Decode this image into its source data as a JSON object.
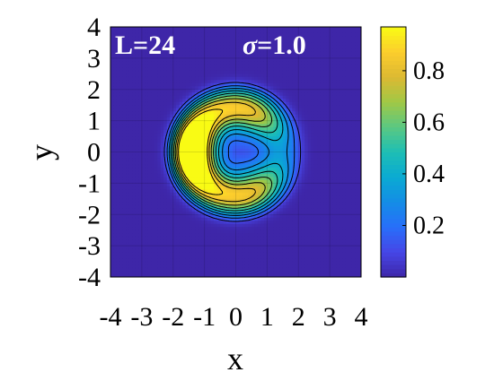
{
  "chart_data": {
    "type": "heatmap",
    "title": "",
    "xlabel": "x",
    "ylabel": "y",
    "xlim": [
      -4,
      4
    ],
    "ylim": [
      -4,
      4
    ],
    "xticks": [
      "-4",
      "-3",
      "-2",
      "-1",
      "0",
      "1",
      "2",
      "3",
      "4"
    ],
    "yticks": [
      "-4",
      "-3",
      "-2",
      "-1",
      "0",
      "1",
      "2",
      "3",
      "4"
    ],
    "annotations": {
      "left": "L=24",
      "sigma_symbol": "σ",
      "sigma_value": "=1.0"
    },
    "colorbar": {
      "range": [
        0,
        0.97
      ],
      "ticks": [
        "0.2",
        "0.4",
        "0.6",
        "0.8"
      ],
      "tick_values": [
        0.2,
        0.4,
        0.6,
        0.8
      ],
      "colormap": "parula"
    },
    "field": {
      "description_values": "amplitude on grid, max about 0.97",
      "outer_radius": 2.2,
      "ring_radius": 1.4,
      "core_center": [
        0.2,
        0.0
      ],
      "core_value_min": 0.3,
      "peak_value": 0.97
    },
    "contour_levels": [
      0.1,
      0.2,
      0.3,
      0.4,
      0.5,
      0.6,
      0.7,
      0.8,
      0.9
    ],
    "grid": true
  },
  "colors": {
    "background_field": "#3e26a8",
    "contour_line": "#000000",
    "text_light": "#ffffff"
  }
}
